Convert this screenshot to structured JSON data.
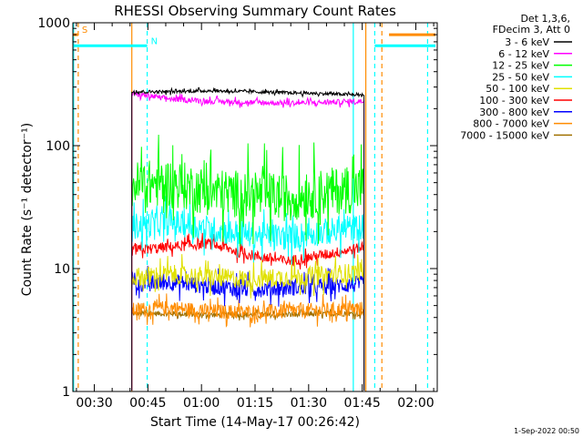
{
  "chart_data": {
    "type": "line",
    "title": "RHESSI Observing Summary Count Rates",
    "xlabel": "Start Time (14-May-17 00:26:42)",
    "ylabel": "Count Rate (s⁻¹ detector⁻¹)",
    "y_scale": "log",
    "ylim": [
      1,
      1000
    ],
    "x_unit": "minutes after 00:00 UT",
    "xlim": [
      24,
      126
    ],
    "x_ticks": [
      {
        "value": 30,
        "label": "00:30"
      },
      {
        "value": 45,
        "label": "00:45"
      },
      {
        "value": 60,
        "label": "01:00"
      },
      {
        "value": 75,
        "label": "01:15"
      },
      {
        "value": 90,
        "label": "01:30"
      },
      {
        "value": 105,
        "label": "01:45"
      },
      {
        "value": 120,
        "label": "02:00"
      }
    ],
    "y_ticks": [
      {
        "value": 1,
        "label": "1"
      },
      {
        "value": 10,
        "label": "10"
      },
      {
        "value": 100,
        "label": "100"
      },
      {
        "value": 1000,
        "label": "1000"
      }
    ],
    "legend": {
      "placement": "top-right outside",
      "header": [
        "Det 1,3,6,",
        "FDecim 3, Att 0"
      ],
      "entries": [
        {
          "label": "3 - 6 keV",
          "color": "#000000"
        },
        {
          "label": "6 - 12 keV",
          "color": "#ff00ff"
        },
        {
          "label": "12 - 25 keV",
          "color": "#00ff00"
        },
        {
          "label": "25 - 50 keV",
          "color": "#00ffff"
        },
        {
          "label": "50 - 100 keV",
          "color": "#e0e000"
        },
        {
          "label": "100 - 300 keV",
          "color": "#ff0000"
        },
        {
          "label": "300 - 800 keV",
          "color": "#0000ff"
        },
        {
          "label": "800 - 7000 keV",
          "color": "#ff8c00"
        },
        {
          "label": "7000 - 15000 keV",
          "color": "#a07000"
        }
      ]
    },
    "series": [
      {
        "name": "3 - 6 keV",
        "color": "#000000",
        "x_start": 40.5,
        "x_end": 105.5,
        "level": [
          275,
          275,
          280,
          275,
          270,
          265,
          258
        ],
        "noise": 0.03
      },
      {
        "name": "6 - 12 keV",
        "color": "#ff00ff",
        "x_start": 40.5,
        "x_end": 105.5,
        "level": [
          265,
          240,
          230,
          225,
          222,
          225,
          230
        ],
        "noise": 0.05
      },
      {
        "name": "12 - 25 keV",
        "color": "#00ff00",
        "x_start": 40.5,
        "x_end": 105.5,
        "level": [
          48,
          50,
          42,
          40,
          38,
          42,
          45
        ],
        "noise": 0.45
      },
      {
        "name": "25 - 50 keV",
        "color": "#00ffff",
        "x_start": 40.5,
        "x_end": 105.5,
        "level": [
          22,
          24,
          21,
          19,
          18,
          20,
          22
        ],
        "noise": 0.25
      },
      {
        "name": "50 - 100 keV",
        "color": "#e0e000",
        "x_start": 40.5,
        "x_end": 105.5,
        "level": [
          8.5,
          9,
          8.5,
          8.2,
          8.5,
          8.8,
          9.5
        ],
        "noise": 0.18
      },
      {
        "name": "100 - 300 keV",
        "color": "#ff0000",
        "x_start": 40.5,
        "x_end": 105.5,
        "level": [
          14,
          15,
          16,
          13,
          11.5,
          13,
          15
        ],
        "noise": 0.1
      },
      {
        "name": "300 - 800 keV",
        "color": "#0000ff",
        "x_start": 40.5,
        "x_end": 105.5,
        "level": [
          7.5,
          7.8,
          7.2,
          6.8,
          7,
          7.2,
          7.5
        ],
        "noise": 0.16
      },
      {
        "name": "800 - 7000 keV",
        "color": "#ff8c00",
        "x_start": 40.5,
        "x_end": 105.5,
        "level": [
          4.6,
          4.8,
          4.5,
          4.4,
          4.5,
          4.6,
          4.7
        ],
        "noise": 0.14
      },
      {
        "name": "7000 - 15000 keV",
        "color": "#a07000",
        "x_start": 40.5,
        "x_end": 105.5,
        "level": [
          4.3,
          4.3,
          4.2,
          4.2,
          4.2,
          4.3,
          4.3
        ],
        "noise": 0.05
      }
    ],
    "flags": [
      {
        "label": "S",
        "color": "#ff8c00",
        "x_start": 24,
        "x_end": 25.5,
        "level": 800
      },
      {
        "label": "N",
        "color": "#00ffff",
        "x_start": 24,
        "x_end": 44.8,
        "level": 650
      },
      {
        "label": "",
        "color": "#00ffff",
        "x_start": 108.5,
        "x_end": 125.5,
        "level": 650
      },
      {
        "label": "",
        "color": "#ff8c00",
        "x_start": 112.5,
        "x_end": 125.5,
        "level": 800
      }
    ],
    "vertical_markers": [
      {
        "x": 25.5,
        "color": "#ff8c00",
        "style": "dashed"
      },
      {
        "x": 24.2,
        "color": "#00ffff",
        "style": "solid"
      },
      {
        "x": 44.8,
        "color": "#00ffff",
        "style": "dashed"
      },
      {
        "x": 102.5,
        "color": "#00ffff",
        "style": "solid"
      },
      {
        "x": 108.5,
        "color": "#00ffff",
        "style": "dashed"
      },
      {
        "x": 123.3,
        "color": "#00ffff",
        "style": "dashed"
      },
      {
        "x": 106,
        "color": "#ff8c00",
        "style": "solid"
      },
      {
        "x": 110.5,
        "color": "#ff8c00",
        "style": "dashed"
      },
      {
        "x": 40.5,
        "color": "#ff8c00",
        "style": "solid"
      }
    ],
    "grid": false
  },
  "footer": {
    "timestamp": "1-Sep-2022 00:50"
  }
}
